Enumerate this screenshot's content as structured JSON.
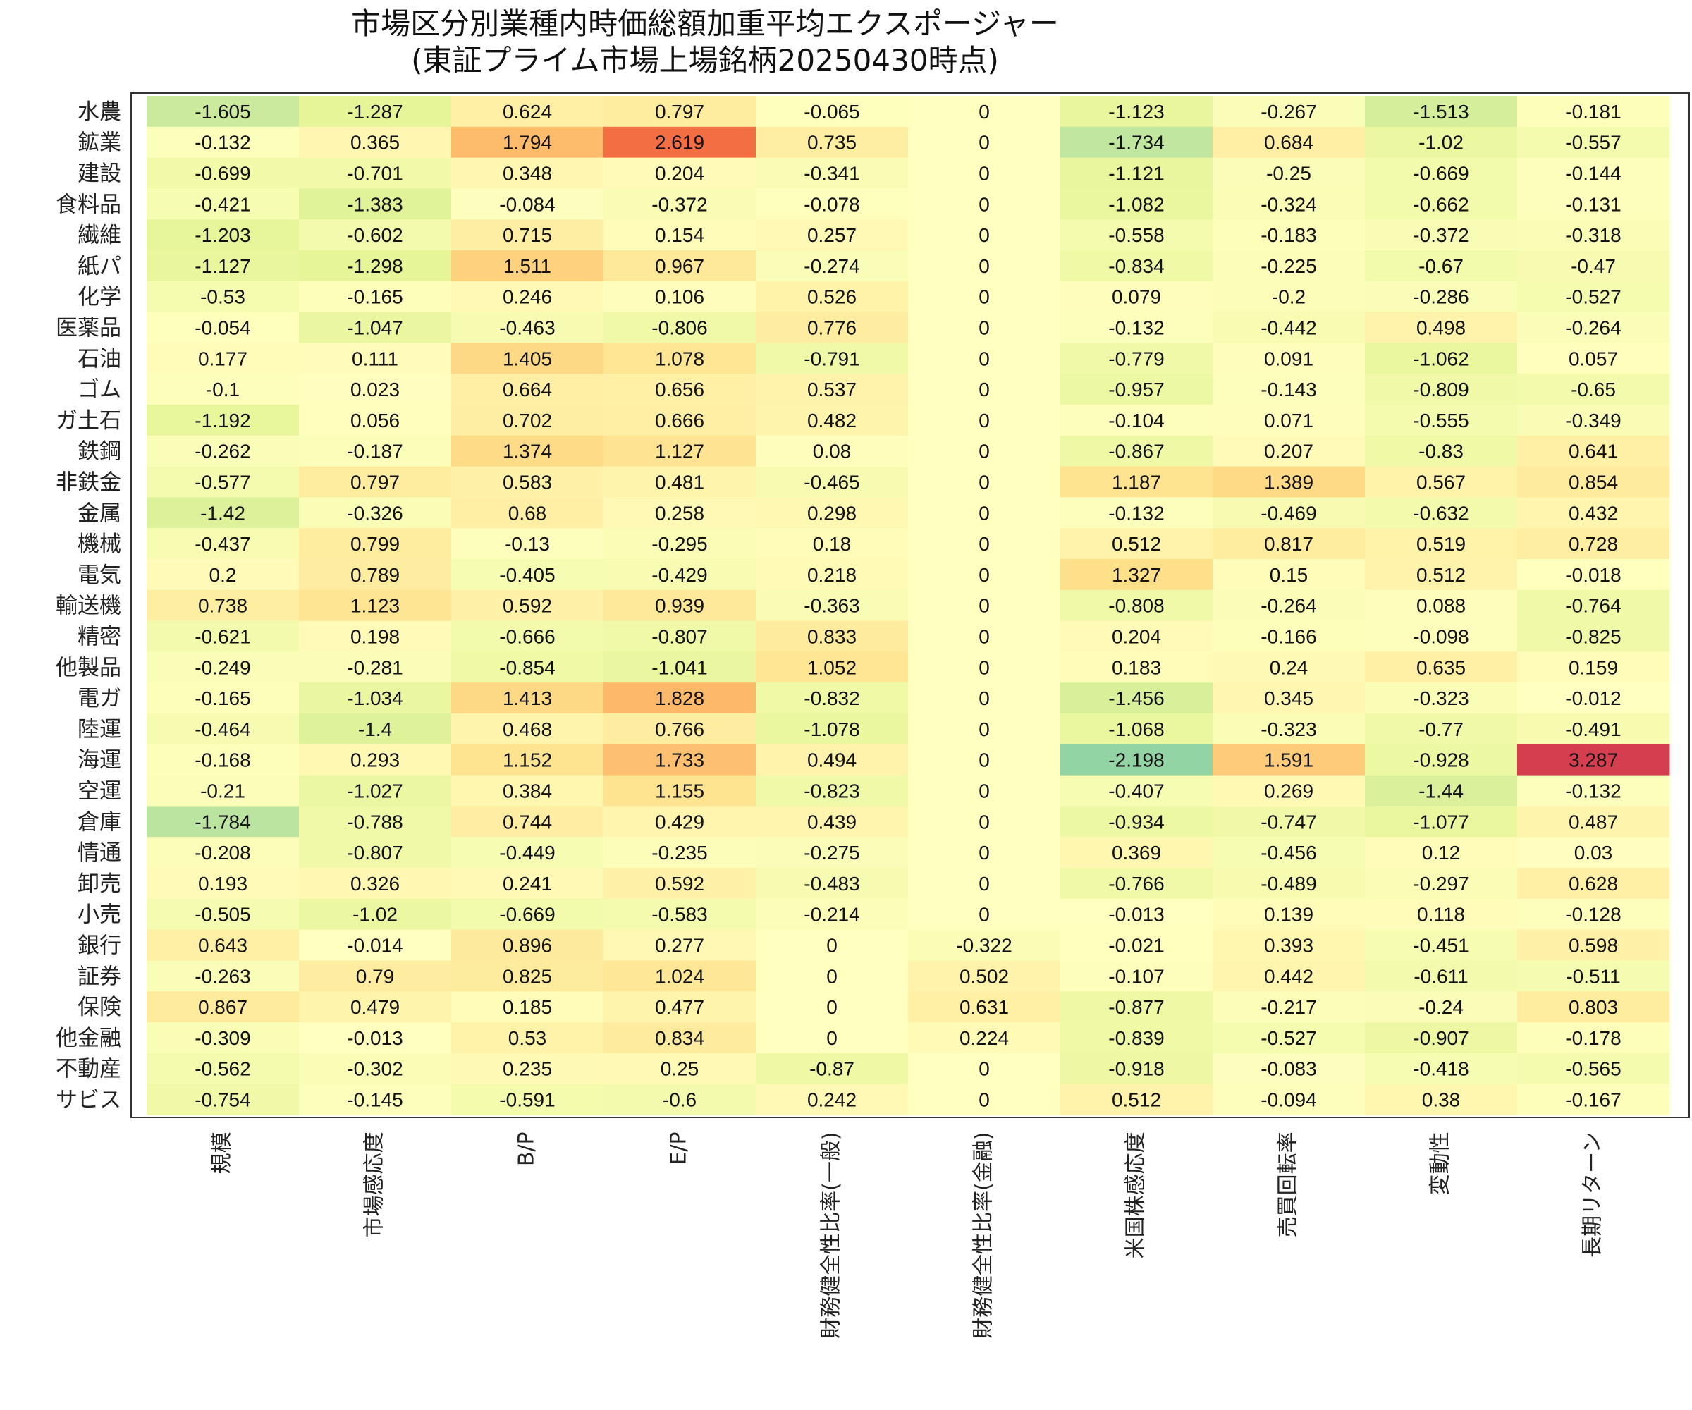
{
  "chart_data": {
    "type": "heatmap",
    "title": "市場区分別業種内時価総額加重平均エクスポージャー",
    "subtitle": "(東証プライム市場上場銘柄20250430時点)",
    "columns": [
      "規模",
      "市場感応度",
      "B/P",
      "E/P",
      "財務健全性比率(一般)",
      "財務健全性比率(金融)",
      "米国株感応度",
      "売買回転率",
      "変動性",
      "長期リターン"
    ],
    "rows": [
      "水農",
      "鉱業",
      "建設",
      "食料品",
      "繊維",
      "紙パ",
      "化学",
      "医薬品",
      "石油",
      "ゴム",
      "ガ土石",
      "鉄鋼",
      "非鉄金",
      "金属",
      "機械",
      "電気",
      "輸送機",
      "精密",
      "他製品",
      "電ガ",
      "陸運",
      "海運",
      "空運",
      "倉庫",
      "情通",
      "卸売",
      "小売",
      "銀行",
      "証券",
      "保険",
      "他金融",
      "不動産",
      "サビス"
    ],
    "values": [
      [
        -1.605,
        -1.287,
        0.624,
        0.797,
        -0.065,
        0,
        -1.123,
        -0.267,
        -1.513,
        -0.181
      ],
      [
        -0.132,
        0.365,
        1.794,
        2.619,
        0.735,
        0,
        -1.734,
        0.684,
        -1.02,
        -0.557
      ],
      [
        -0.699,
        -0.701,
        0.348,
        0.204,
        -0.341,
        0,
        -1.121,
        -0.25,
        -0.669,
        -0.144
      ],
      [
        -0.421,
        -1.383,
        -0.084,
        -0.372,
        -0.078,
        0,
        -1.082,
        -0.324,
        -0.662,
        -0.131
      ],
      [
        -1.203,
        -0.602,
        0.715,
        0.154,
        0.257,
        0,
        -0.558,
        -0.183,
        -0.372,
        -0.318
      ],
      [
        -1.127,
        -1.298,
        1.511,
        0.967,
        -0.274,
        0,
        -0.834,
        -0.225,
        -0.67,
        -0.47
      ],
      [
        -0.53,
        -0.165,
        0.246,
        0.106,
        0.526,
        0,
        0.079,
        -0.2,
        -0.286,
        -0.527
      ],
      [
        -0.054,
        -1.047,
        -0.463,
        -0.806,
        0.776,
        0,
        -0.132,
        -0.442,
        0.498,
        -0.264
      ],
      [
        0.177,
        0.111,
        1.405,
        1.078,
        -0.791,
        0,
        -0.779,
        0.091,
        -1.062,
        0.057
      ],
      [
        -0.1,
        0.023,
        0.664,
        0.656,
        0.537,
        0,
        -0.957,
        -0.143,
        -0.809,
        -0.65
      ],
      [
        -1.192,
        0.056,
        0.702,
        0.666,
        0.482,
        0,
        -0.104,
        0.071,
        -0.555,
        -0.349
      ],
      [
        -0.262,
        -0.187,
        1.374,
        1.127,
        0.08,
        0,
        -0.867,
        0.207,
        -0.83,
        0.641
      ],
      [
        -0.577,
        0.797,
        0.583,
        0.481,
        -0.465,
        0,
        1.187,
        1.389,
        0.567,
        0.854
      ],
      [
        -1.42,
        -0.326,
        0.68,
        0.258,
        0.298,
        0,
        -0.132,
        -0.469,
        -0.632,
        0.432
      ],
      [
        -0.437,
        0.799,
        -0.13,
        -0.295,
        0.18,
        0,
        0.512,
        0.817,
        0.519,
        0.728
      ],
      [
        0.2,
        0.789,
        -0.405,
        -0.429,
        0.218,
        0,
        1.327,
        0.15,
        0.512,
        -0.018
      ],
      [
        0.738,
        1.123,
        0.592,
        0.939,
        -0.363,
        0,
        -0.808,
        -0.264,
        0.088,
        -0.764
      ],
      [
        -0.621,
        0.198,
        -0.666,
        -0.807,
        0.833,
        0,
        0.204,
        -0.166,
        -0.098,
        -0.825
      ],
      [
        -0.249,
        -0.281,
        -0.854,
        -1.041,
        1.052,
        0,
        0.183,
        0.24,
        0.635,
        0.159
      ],
      [
        -0.165,
        -1.034,
        1.413,
        1.828,
        -0.832,
        0,
        -1.456,
        0.345,
        -0.323,
        -0.012
      ],
      [
        -0.464,
        -1.4,
        0.468,
        0.766,
        -1.078,
        0,
        -1.068,
        -0.323,
        -0.77,
        -0.491
      ],
      [
        -0.168,
        0.293,
        1.152,
        1.733,
        0.494,
        0,
        -2.198,
        1.591,
        -0.928,
        3.287
      ],
      [
        -0.21,
        -1.027,
        0.384,
        1.155,
        -0.823,
        0,
        -0.407,
        0.269,
        -1.44,
        -0.132
      ],
      [
        -1.784,
        -0.788,
        0.744,
        0.429,
        0.439,
        0,
        -0.934,
        -0.747,
        -1.077,
        0.487
      ],
      [
        -0.208,
        -0.807,
        -0.449,
        -0.235,
        -0.275,
        0,
        0.369,
        -0.456,
        0.12,
        0.03
      ],
      [
        0.193,
        0.326,
        0.241,
        0.592,
        -0.483,
        0,
        -0.766,
        -0.489,
        -0.297,
        0.628
      ],
      [
        -0.505,
        -1.02,
        -0.669,
        -0.583,
        -0.214,
        0,
        -0.013,
        0.139,
        0.118,
        -0.128
      ],
      [
        0.643,
        -0.014,
        0.896,
        0.277,
        0,
        -0.322,
        -0.021,
        0.393,
        -0.451,
        0.598
      ],
      [
        -0.263,
        0.79,
        0.825,
        1.024,
        0,
        0.502,
        -0.107,
        0.442,
        -0.611,
        -0.511
      ],
      [
        0.867,
        0.479,
        0.185,
        0.477,
        0,
        0.631,
        -0.877,
        -0.217,
        -0.24,
        0.803
      ],
      [
        -0.309,
        -0.013,
        0.53,
        0.834,
        0,
        0.224,
        -0.839,
        -0.527,
        -0.907,
        -0.178
      ],
      [
        -0.562,
        -0.302,
        0.235,
        0.25,
        -0.87,
        0,
        -0.918,
        -0.083,
        -0.418,
        -0.565
      ],
      [
        -0.754,
        -0.145,
        -0.591,
        -0.6,
        0.242,
        0,
        0.512,
        -0.094,
        0.38,
        -0.167
      ]
    ],
    "colormap": "Spectral_r",
    "value_range": [
      -3.287,
      3.287
    ],
    "colors": {
      "plot_border": "#333333",
      "plot_background": "#ffffff"
    },
    "legend": "none",
    "grid": false
  }
}
